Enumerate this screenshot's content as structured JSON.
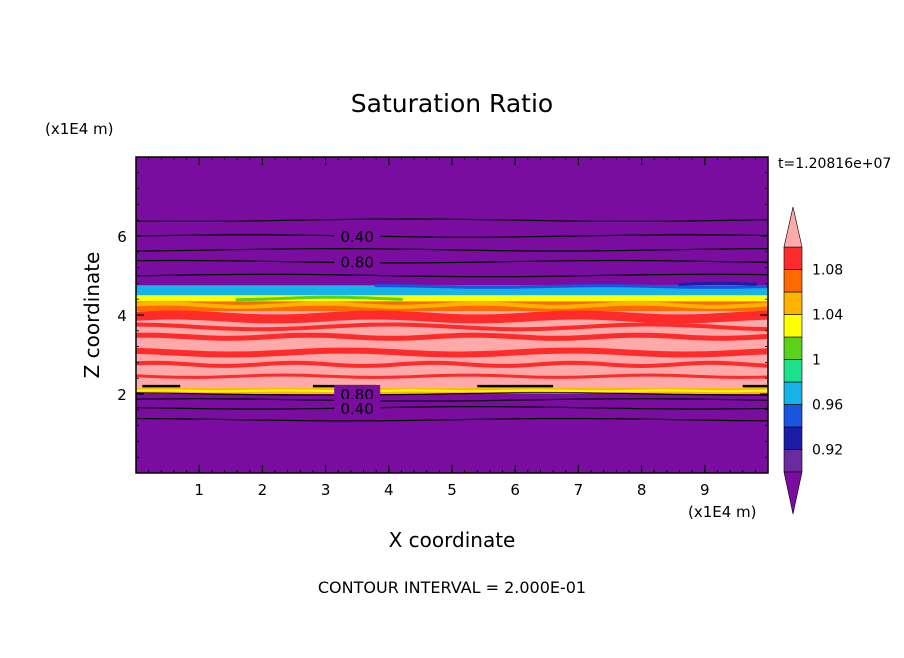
{
  "chart_data": {
    "type": "heatmap",
    "title": "Saturation Ratio",
    "xlabel": "X coordinate",
    "ylabel": "Z coordinate",
    "x_unit_label": "(x1E4 m)",
    "y_unit_label": "(x1E4 m)",
    "xlim": [
      0,
      10
    ],
    "ylim": [
      0,
      8
    ],
    "x_ticks": [
      "1",
      "2",
      "3",
      "4",
      "5",
      "6",
      "7",
      "8",
      "9"
    ],
    "x_tick_values": [
      1,
      2,
      3,
      4,
      5,
      6,
      7,
      8,
      9
    ],
    "y_ticks": [
      "2",
      "4",
      "6"
    ],
    "y_tick_values": [
      2,
      4,
      6
    ],
    "time_label": "t=1.20816e+07",
    "footer": "CONTOUR INTERVAL = 2.000E-01",
    "contour_interval": 0.2,
    "colorbar": {
      "bounds": [
        0.9,
        0.92,
        0.94,
        0.96,
        0.98,
        1.0,
        1.02,
        1.04,
        1.06,
        1.08,
        1.1
      ],
      "labels": [
        "0.92",
        "0.96",
        "1",
        "1.04",
        "1.08"
      ],
      "label_values": [
        0.92,
        0.96,
        1.0,
        1.04,
        1.08
      ],
      "colors": [
        "#6a2b9e",
        "#1c1ca8",
        "#1a55e0",
        "#16b4e6",
        "#1ce08a",
        "#5ad21a",
        "#ffff00",
        "#ffb400",
        "#ff6a00",
        "#ff2a2a"
      ],
      "under_color": "#7a0da0",
      "over_color": "#ffaaaa"
    },
    "bands": [
      {
        "z_from": 0.0,
        "z_to": 2.0,
        "value": "<0.90",
        "color": "#7a0da0"
      },
      {
        "z_from": 2.0,
        "z_to": 2.15,
        "value": "1.04-1.08",
        "color": "#ffb400"
      },
      {
        "z_from": 2.15,
        "z_to": 4.1,
        "value": ">1.10 with 1.08-1.10 streaks",
        "color": "#ffaaaa"
      },
      {
        "z_from": 4.1,
        "z_to": 4.35,
        "value": "1.06-1.08",
        "color": "#ff6a00"
      },
      {
        "z_from": 4.35,
        "z_to": 4.5,
        "value": "1.02-1.06",
        "color": "#ffff00"
      },
      {
        "z_from": 4.5,
        "z_to": 4.75,
        "value": "0.94-1.00",
        "color": "#16b4e6"
      },
      {
        "z_from": 4.75,
        "z_to": 8.0,
        "value": "<0.90",
        "color": "#7a0da0"
      }
    ],
    "contours": [
      {
        "value": 0.4,
        "z": 6.0,
        "label": "0.40",
        "label_x": 3.5
      },
      {
        "value": 0.8,
        "z": 5.35,
        "label": "0.80",
        "label_x": 3.5
      },
      {
        "value": 0.8,
        "z": 2.0,
        "label": "0.80",
        "label_x": 3.5
      },
      {
        "value": 0.4,
        "z": 1.65,
        "label": "0.40",
        "label_x": 3.5
      }
    ],
    "extra_contour_z": [
      6.4,
      5.65,
      5.0,
      1.85,
      1.35
    ]
  }
}
